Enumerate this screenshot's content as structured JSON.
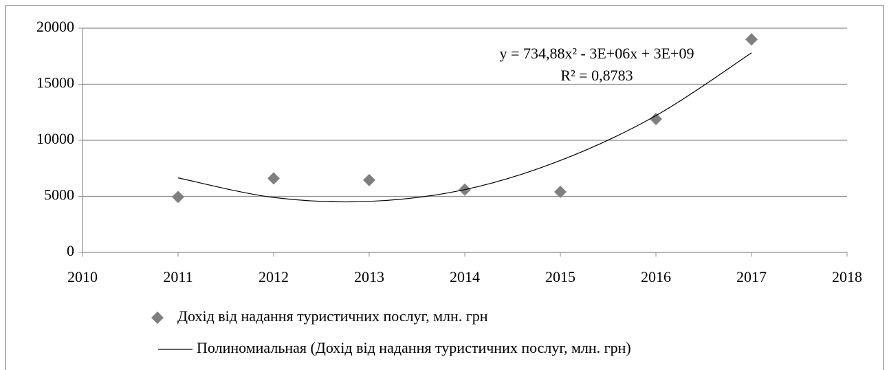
{
  "chart_data": {
    "type": "scatter",
    "series": [
      {
        "name": "Дохід від надання туристичних послуг, млн. грн",
        "color": "#7f7f7f",
        "x": [
          2011,
          2012,
          2013,
          2014,
          2015,
          2016,
          2017
        ],
        "values": [
          4950,
          6600,
          6450,
          5600,
          5400,
          11900,
          19000
        ]
      },
      {
        "name": "Полиномиальная (Дохід від надання туристичних послуг, млн. грн)",
        "color": "#000000",
        "trendline": true,
        "x": [
          2011,
          2012,
          2013,
          2014,
          2015,
          2016,
          2017
        ],
        "values": [
          6650,
          4900,
          4550,
          5600,
          8200,
          12200,
          17800
        ]
      }
    ],
    "annotations": [
      "y = 734,88x² - 3E+06x + 3E+09",
      "R² = 0,8783"
    ],
    "xlim": [
      2010,
      2018
    ],
    "xticks": [
      2010,
      2011,
      2012,
      2013,
      2014,
      2015,
      2016,
      2017,
      2018
    ],
    "ylim": [
      0,
      20000
    ],
    "yticks": [
      0,
      5000,
      10000,
      15000,
      20000
    ],
    "grid": true,
    "legend": "bottom"
  }
}
